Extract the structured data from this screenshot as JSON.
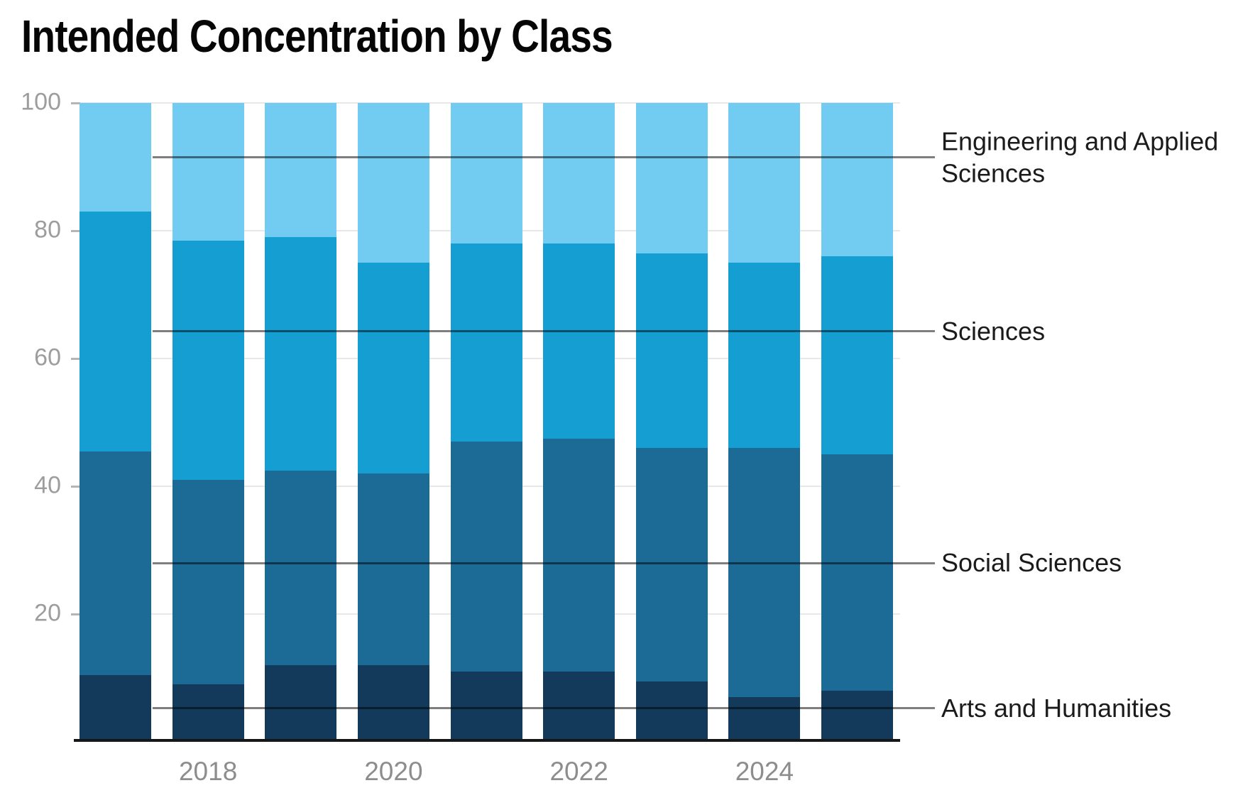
{
  "chart_data": {
    "type": "bar",
    "stacked": true,
    "title": "Intended Concentration by Class",
    "xlabel": "",
    "ylabel": "",
    "x": [
      "2017",
      "2018",
      "2019",
      "2020",
      "2021",
      "2022",
      "2023",
      "2024",
      "2025"
    ],
    "visible_x_tick_labels": [
      "2018",
      "2020",
      "2022",
      "2024"
    ],
    "ylim": [
      0,
      100
    ],
    "yticks": [
      20,
      40,
      60,
      80,
      100
    ],
    "grid": true,
    "legend_position": "right-direct-labels-with-leader-lines",
    "series": [
      {
        "name": "Arts and Humanities",
        "color": "#133a5b",
        "values": [
          10.5,
          9,
          12,
          12,
          11,
          11,
          9.5,
          7,
          8
        ]
      },
      {
        "name": "Social Sciences",
        "color": "#1c6b96",
        "values": [
          35,
          32,
          30.5,
          30,
          36,
          36.5,
          36.5,
          39,
          37
        ]
      },
      {
        "name": "Sciences",
        "color": "#149ed2",
        "values": [
          37.5,
          37.5,
          36.5,
          33,
          31,
          30.5,
          30.5,
          29,
          31
        ]
      },
      {
        "name": "Engineering and Applied Sciences",
        "color": "#72ccf2",
        "values": [
          17,
          21.5,
          21,
          25,
          22,
          22,
          23.5,
          25,
          24
        ]
      }
    ]
  },
  "style": {
    "gridline_color": "#e8e8e8",
    "tick_dash_color": "#b5b5b5",
    "axis_line_color": "#161616",
    "y_tick_label_color": "#9d9d9d",
    "x_tick_label_color": "#8d8d8d",
    "series_label_color": "#1b1b1b",
    "leader_line_color": "rgba(0,0,0,0.5)",
    "title_color": "#060606",
    "background_color": "#ffffff"
  }
}
